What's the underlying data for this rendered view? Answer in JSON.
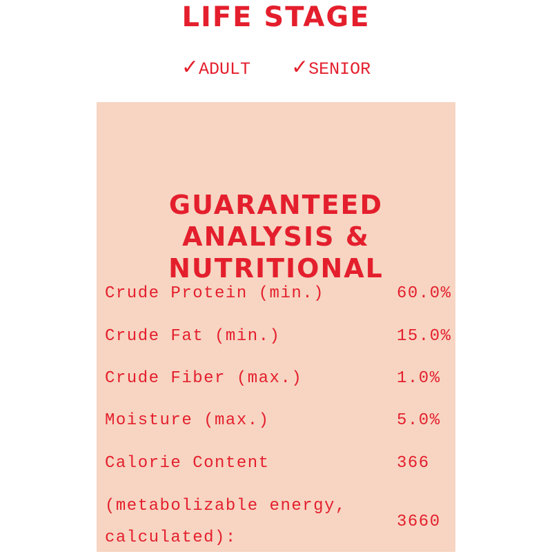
{
  "life_stage": {
    "title": "LIFE STAGE",
    "check_icon": "✓",
    "stages": [
      "ADULT",
      "SENIOR"
    ]
  },
  "analysis": {
    "heading": "GUARANTEED ANALYSIS & NUTRITIONAL",
    "rows": [
      {
        "label": "Crude Protein (min.)",
        "value": "60.0%"
      },
      {
        "label": "Crude Fat (min.)",
        "value": "15.0%"
      },
      {
        "label": "Crude Fiber (max.)",
        "value": "1.0%"
      },
      {
        "label": "Moisture (max.)",
        "value": "5.0%"
      },
      {
        "label": "Calorie Content",
        "value": "366"
      },
      {
        "label": "(metabolizable energy, calculated):",
        "value": "3660"
      }
    ]
  },
  "colors": {
    "accent": "#e41f2d",
    "panel": "#f7d5c2"
  }
}
